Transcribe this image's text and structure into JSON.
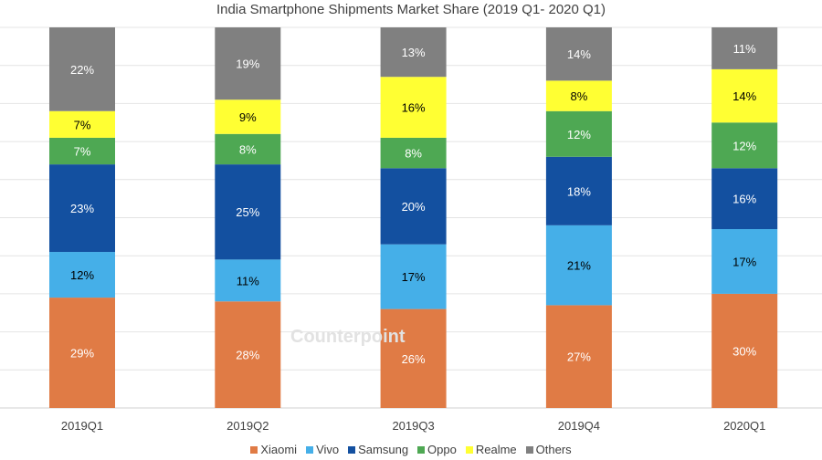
{
  "chart_data": {
    "type": "bar",
    "stacked": true,
    "title": "India Smartphone Shipments Market Share (2019 Q1- 2020 Q1)",
    "categories": [
      "2019Q1",
      "2019Q2",
      "2019Q3",
      "2019Q4",
      "2020Q1"
    ],
    "ylim": [
      0,
      100
    ],
    "grid": true,
    "legend": "bottom",
    "series": [
      {
        "name": "Xiaomi",
        "color": "#E07B45",
        "label_color": "#ffffff",
        "values": [
          29,
          28,
          26,
          27,
          30
        ]
      },
      {
        "name": "Vivo",
        "color": "#45AFE8",
        "label_color": "#000000",
        "values": [
          12,
          11,
          17,
          21,
          17
        ]
      },
      {
        "name": "Samsung",
        "color": "#1350A0",
        "label_color": "#ffffff",
        "values": [
          23,
          25,
          20,
          18,
          16
        ]
      },
      {
        "name": "Oppo",
        "color": "#4EA853",
        "label_color": "#ffffff",
        "values": [
          7,
          8,
          8,
          12,
          12
        ]
      },
      {
        "name": "Realme",
        "color": "#FFFF33",
        "label_color": "#000000",
        "values": [
          7,
          9,
          16,
          8,
          14
        ]
      },
      {
        "name": "Others",
        "color": "#808080",
        "label_color": "#ffffff",
        "values": [
          22,
          19,
          13,
          14,
          11
        ]
      }
    ]
  },
  "watermark": "Counterpoint"
}
